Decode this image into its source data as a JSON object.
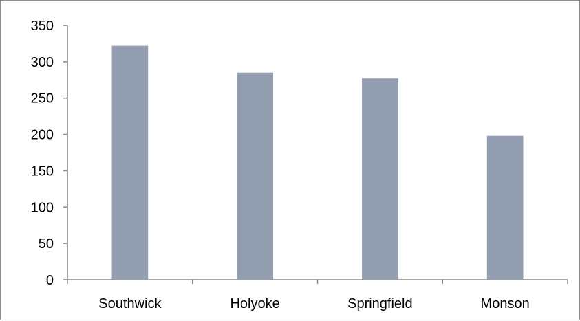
{
  "chart_data": {
    "type": "bar",
    "categories": [
      "Southwick",
      "Holyoke",
      "Springfield",
      "Monson"
    ],
    "values": [
      322,
      285,
      277,
      198
    ],
    "ylim": [
      0,
      350
    ],
    "yticks": [
      0,
      50,
      100,
      150,
      200,
      250,
      300,
      350
    ],
    "grid": false,
    "legend": "none",
    "bar_color": "#939fb0",
    "axis_color": "#868686"
  }
}
